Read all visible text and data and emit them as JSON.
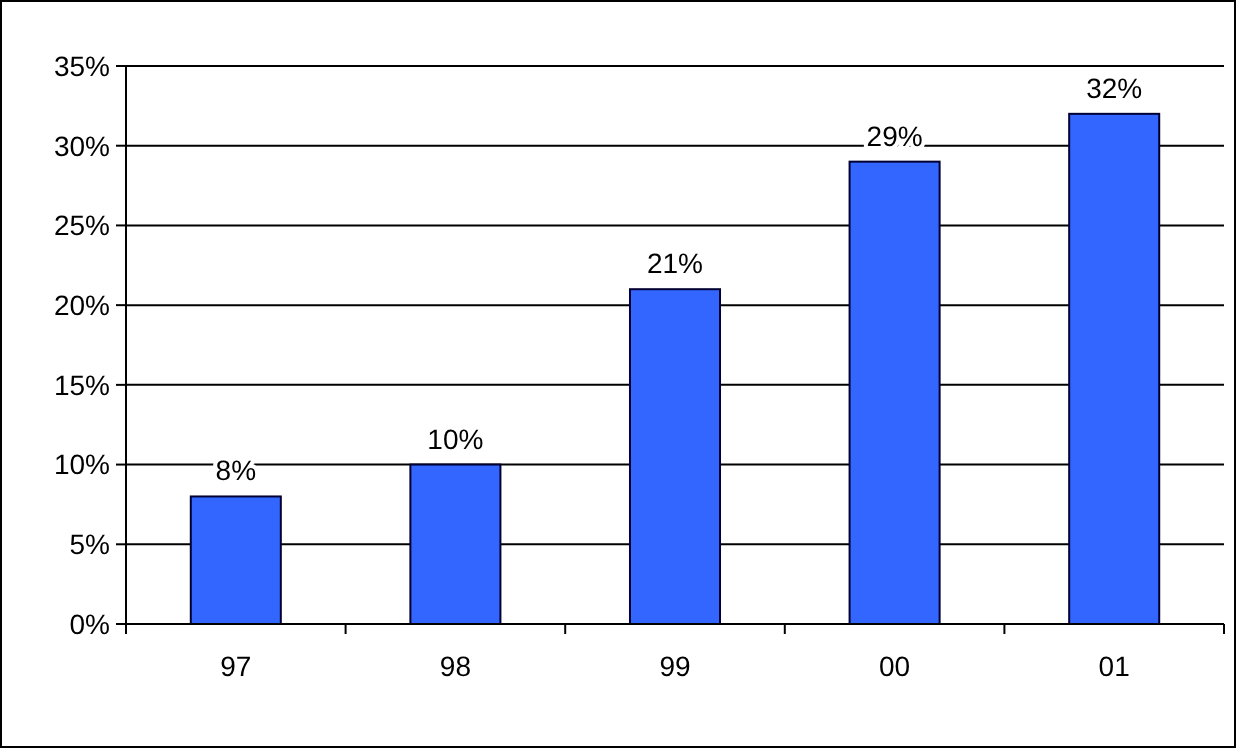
{
  "chart_data": {
    "type": "bar",
    "categories": [
      "97",
      "98",
      "99",
      "00",
      "01"
    ],
    "values": [
      8,
      10,
      21,
      29,
      32
    ],
    "value_labels": [
      "8%",
      "10%",
      "21%",
      "29%",
      "32%"
    ],
    "color": "#3366ff",
    "ylim": [
      0,
      35
    ],
    "yticks": [
      {
        "value": 0,
        "label": "0%"
      },
      {
        "value": 5,
        "label": "5%"
      },
      {
        "value": 10,
        "label": "10%"
      },
      {
        "value": 15,
        "label": "15%"
      },
      {
        "value": 20,
        "label": "20%"
      },
      {
        "value": 25,
        "label": "25%"
      },
      {
        "value": 30,
        "label": "30%"
      },
      {
        "value": 35,
        "label": "35%"
      }
    ],
    "grid": "y"
  }
}
